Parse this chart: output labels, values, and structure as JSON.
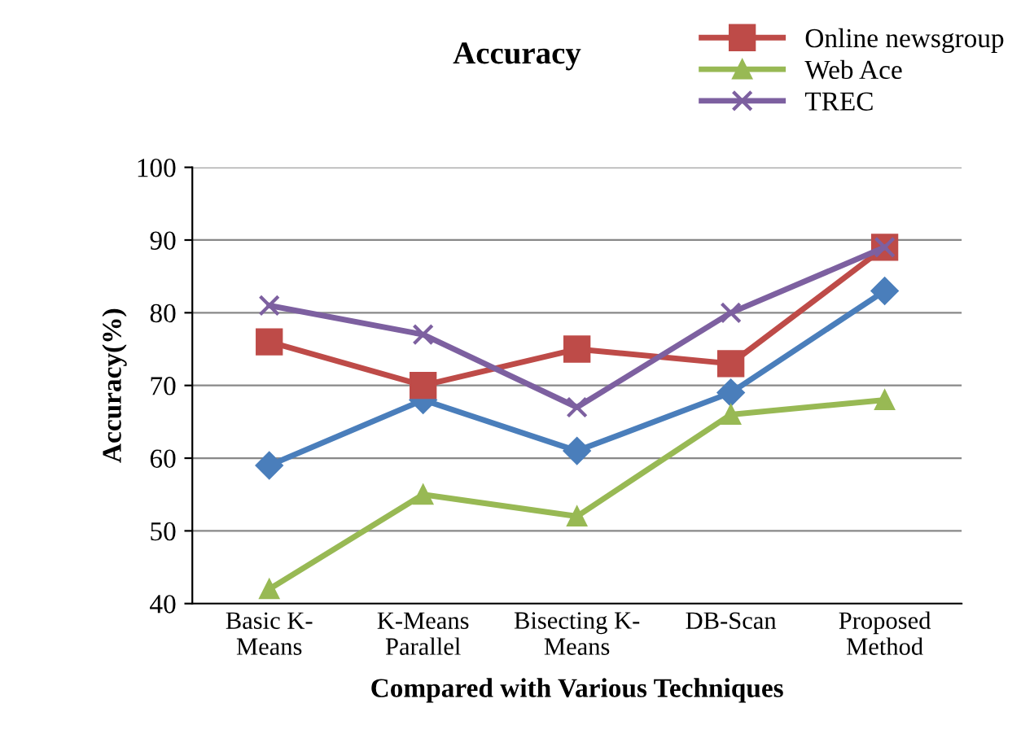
{
  "chart_data": {
    "type": "line",
    "title": "Accuracy",
    "xlabel": "Compared with Various Techniques",
    "ylabel": "Accuracy(%)",
    "categories": [
      "Basic K-\nMeans",
      "K-Means\nParallel",
      "Bisecting K-\nMeans",
      "DB-Scan",
      "Proposed\nMethod"
    ],
    "series": [
      {
        "color": "#4a7ebb",
        "marker": "diamond",
        "values": [
          59,
          68,
          61,
          69,
          83
        ]
      },
      {
        "name": "Online newsgroup",
        "color": "#be4b48",
        "marker": "square",
        "values": [
          76,
          70,
          75,
          73,
          89
        ]
      },
      {
        "name": "Web Ace",
        "color": "#98b954",
        "marker": "triangle",
        "values": [
          42,
          55,
          52,
          66,
          68
        ]
      },
      {
        "name": "TREC",
        "color": "#7d60a0",
        "marker": "cross",
        "values": [
          81,
          77,
          67,
          80,
          89
        ]
      }
    ],
    "ylim": [
      40,
      100
    ],
    "yticks": [
      40,
      50,
      60,
      70,
      80,
      90,
      100
    ],
    "grid": "y",
    "legend": "top right",
    "line_style": "solid"
  }
}
